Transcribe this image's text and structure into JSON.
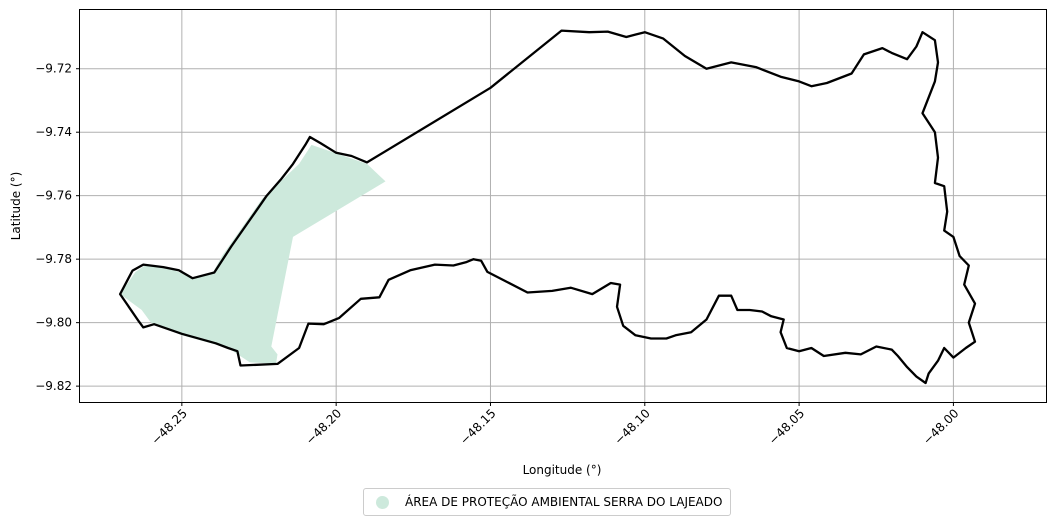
{
  "map": {
    "xlabel": "Longitude (°)",
    "ylabel": "Latitude (°)",
    "xlim": [
      -48.283,
      -47.97
    ],
    "ylim": [
      -9.825,
      -9.7015
    ],
    "xticks": [
      -48.25,
      -48.2,
      -48.15,
      -48.1,
      -48.05,
      -48.0
    ],
    "xtick_labels": [
      "−48.25",
      "−48.20",
      "−48.15",
      "−48.10",
      "−48.05",
      "−48.00"
    ],
    "yticks": [
      -9.72,
      -9.74,
      -9.76,
      -9.78,
      -9.8,
      -9.82
    ],
    "ytick_labels": [
      "−9.72",
      "−9.74",
      "−9.76",
      "−9.78",
      "−9.80",
      "−9.82"
    ],
    "grid": true,
    "legend_placement": "bottom-center, below plot"
  },
  "legend": {
    "label": "ÁREA DE PROTEÇÃO AMBIENTAL SERRA DO LAJEADO",
    "color": "#cde9dc"
  },
  "colors": {
    "fill": "#cde9dc",
    "outline": "#000000",
    "grid": "#b0b0b0"
  },
  "layers": {
    "protected_area": {
      "label": "ÁREA DE PROTEÇÃO AMBIENTAL SERRA DO LAJEADO",
      "coords": [
        [
          -48.27,
          -9.791
        ],
        [
          -48.265,
          -9.784
        ],
        [
          -48.262,
          -9.782
        ],
        [
          -48.255,
          -9.7825
        ],
        [
          -48.246,
          -9.786
        ],
        [
          -48.24,
          -9.7843
        ],
        [
          -48.237,
          -9.779
        ],
        [
          -48.224,
          -9.761
        ],
        [
          -48.212,
          -9.75
        ],
        [
          -48.208,
          -9.744
        ],
        [
          -48.19,
          -9.75
        ],
        [
          -48.184,
          -9.7555
        ],
        [
          -48.214,
          -9.773
        ],
        [
          -48.221,
          -9.8075
        ],
        [
          -48.219,
          -9.81
        ],
        [
          -48.2195,
          -9.813
        ],
        [
          -48.228,
          -9.8125
        ],
        [
          -48.235,
          -9.808
        ],
        [
          -48.25,
          -9.804
        ],
        [
          -48.26,
          -9.8
        ],
        [
          -48.263,
          -9.796
        ]
      ]
    },
    "boundary": {
      "coords": [
        [
          -48.27,
          -9.791
        ],
        [
          -48.266,
          -9.7836
        ],
        [
          -48.2625,
          -9.7817
        ],
        [
          -48.256,
          -9.7825
        ],
        [
          -48.251,
          -9.7835
        ],
        [
          -48.2465,
          -9.786
        ],
        [
          -48.2395,
          -9.7842
        ],
        [
          -48.234,
          -9.776
        ],
        [
          -48.225,
          -9.7635
        ],
        [
          -48.2225,
          -9.76
        ],
        [
          -48.218,
          -9.755
        ],
        [
          -48.214,
          -9.75
        ],
        [
          -48.21,
          -9.744
        ],
        [
          -48.2085,
          -9.7415
        ],
        [
          -48.205,
          -9.7435
        ],
        [
          -48.2,
          -9.7465
        ],
        [
          -48.195,
          -9.7475
        ],
        [
          -48.19,
          -9.7495
        ],
        [
          -48.15,
          -9.726
        ],
        [
          -48.127,
          -9.708
        ],
        [
          -48.118,
          -9.7085
        ],
        [
          -48.112,
          -9.7083
        ],
        [
          -48.106,
          -9.71
        ],
        [
          -48.1,
          -9.7085
        ],
        [
          -48.094,
          -9.7105
        ],
        [
          -48.087,
          -9.716
        ],
        [
          -48.08,
          -9.72
        ],
        [
          -48.072,
          -9.718
        ],
        [
          -48.064,
          -9.7195
        ],
        [
          -48.056,
          -9.7225
        ],
        [
          -48.05,
          -9.724
        ],
        [
          -48.046,
          -9.7255
        ],
        [
          -48.041,
          -9.7245
        ],
        [
          -48.033,
          -9.7215
        ],
        [
          -48.029,
          -9.7155
        ],
        [
          -48.023,
          -9.7135
        ],
        [
          -48.02,
          -9.715
        ],
        [
          -48.015,
          -9.717
        ],
        [
          -48.012,
          -9.713
        ],
        [
          -48.01,
          -9.7085
        ],
        [
          -48.006,
          -9.711
        ],
        [
          -48.005,
          -9.718
        ],
        [
          -48.006,
          -9.724
        ],
        [
          -48.008,
          -9.729
        ],
        [
          -48.01,
          -9.734
        ],
        [
          -48.006,
          -9.74
        ],
        [
          -48.005,
          -9.748
        ],
        [
          -48.006,
          -9.756
        ],
        [
          -48.003,
          -9.757
        ],
        [
          -48.002,
          -9.765
        ],
        [
          -48.003,
          -9.771
        ],
        [
          -48.0,
          -9.773
        ],
        [
          -47.998,
          -9.779
        ],
        [
          -47.995,
          -9.782
        ],
        [
          -47.9965,
          -9.788
        ],
        [
          -47.993,
          -9.794
        ],
        [
          -47.995,
          -9.8
        ],
        [
          -47.993,
          -9.806
        ],
        [
          -47.996,
          -9.808
        ],
        [
          -48.0,
          -9.811
        ],
        [
          -48.003,
          -9.808
        ],
        [
          -48.005,
          -9.812
        ],
        [
          -48.008,
          -9.816
        ],
        [
          -48.009,
          -9.819
        ],
        [
          -48.012,
          -9.817
        ],
        [
          -48.015,
          -9.814
        ],
        [
          -48.018,
          -9.8105
        ],
        [
          -48.02,
          -9.8085
        ],
        [
          -48.025,
          -9.8075
        ],
        [
          -48.03,
          -9.81
        ],
        [
          -48.035,
          -9.8095
        ],
        [
          -48.042,
          -9.8105
        ],
        [
          -48.046,
          -9.808
        ],
        [
          -48.05,
          -9.809
        ],
        [
          -48.054,
          -9.808
        ],
        [
          -48.056,
          -9.803
        ],
        [
          -48.055,
          -9.799
        ],
        [
          -48.059,
          -9.798
        ],
        [
          -48.062,
          -9.7965
        ],
        [
          -48.066,
          -9.796
        ],
        [
          -48.07,
          -9.796
        ],
        [
          -48.072,
          -9.7915
        ],
        [
          -48.076,
          -9.7915
        ],
        [
          -48.08,
          -9.799
        ],
        [
          -48.085,
          -9.803
        ],
        [
          -48.09,
          -9.804
        ],
        [
          -48.093,
          -9.805
        ],
        [
          -48.098,
          -9.805
        ],
        [
          -48.103,
          -9.804
        ],
        [
          -48.107,
          -9.801
        ],
        [
          -48.109,
          -9.795
        ],
        [
          -48.108,
          -9.788
        ],
        [
          -48.111,
          -9.7875
        ],
        [
          -48.117,
          -9.791
        ],
        [
          -48.124,
          -9.789
        ],
        [
          -48.13,
          -9.79
        ],
        [
          -48.138,
          -9.7905
        ],
        [
          -48.145,
          -9.787
        ],
        [
          -48.151,
          -9.784
        ],
        [
          -48.153,
          -9.7805
        ],
        [
          -48.1555,
          -9.78
        ],
        [
          -48.158,
          -9.781
        ],
        [
          -48.162,
          -9.782
        ],
        [
          -48.168,
          -9.7817
        ],
        [
          -48.176,
          -9.7835
        ],
        [
          -48.183,
          -9.7865
        ],
        [
          -48.186,
          -9.792
        ],
        [
          -48.192,
          -9.7925
        ],
        [
          -48.199,
          -9.7985
        ],
        [
          -48.204,
          -9.8005
        ],
        [
          -48.209,
          -9.8003
        ],
        [
          -48.212,
          -9.808
        ],
        [
          -48.219,
          -9.813
        ],
        [
          -48.231,
          -9.8135
        ],
        [
          -48.232,
          -9.809
        ],
        [
          -48.235,
          -9.808
        ],
        [
          -48.239,
          -9.8065
        ],
        [
          -48.25,
          -9.8035
        ],
        [
          -48.259,
          -9.8005
        ],
        [
          -48.2625,
          -9.8015
        ],
        [
          -48.264,
          -9.7995
        ],
        [
          -48.27,
          -9.791
        ]
      ]
    }
  }
}
